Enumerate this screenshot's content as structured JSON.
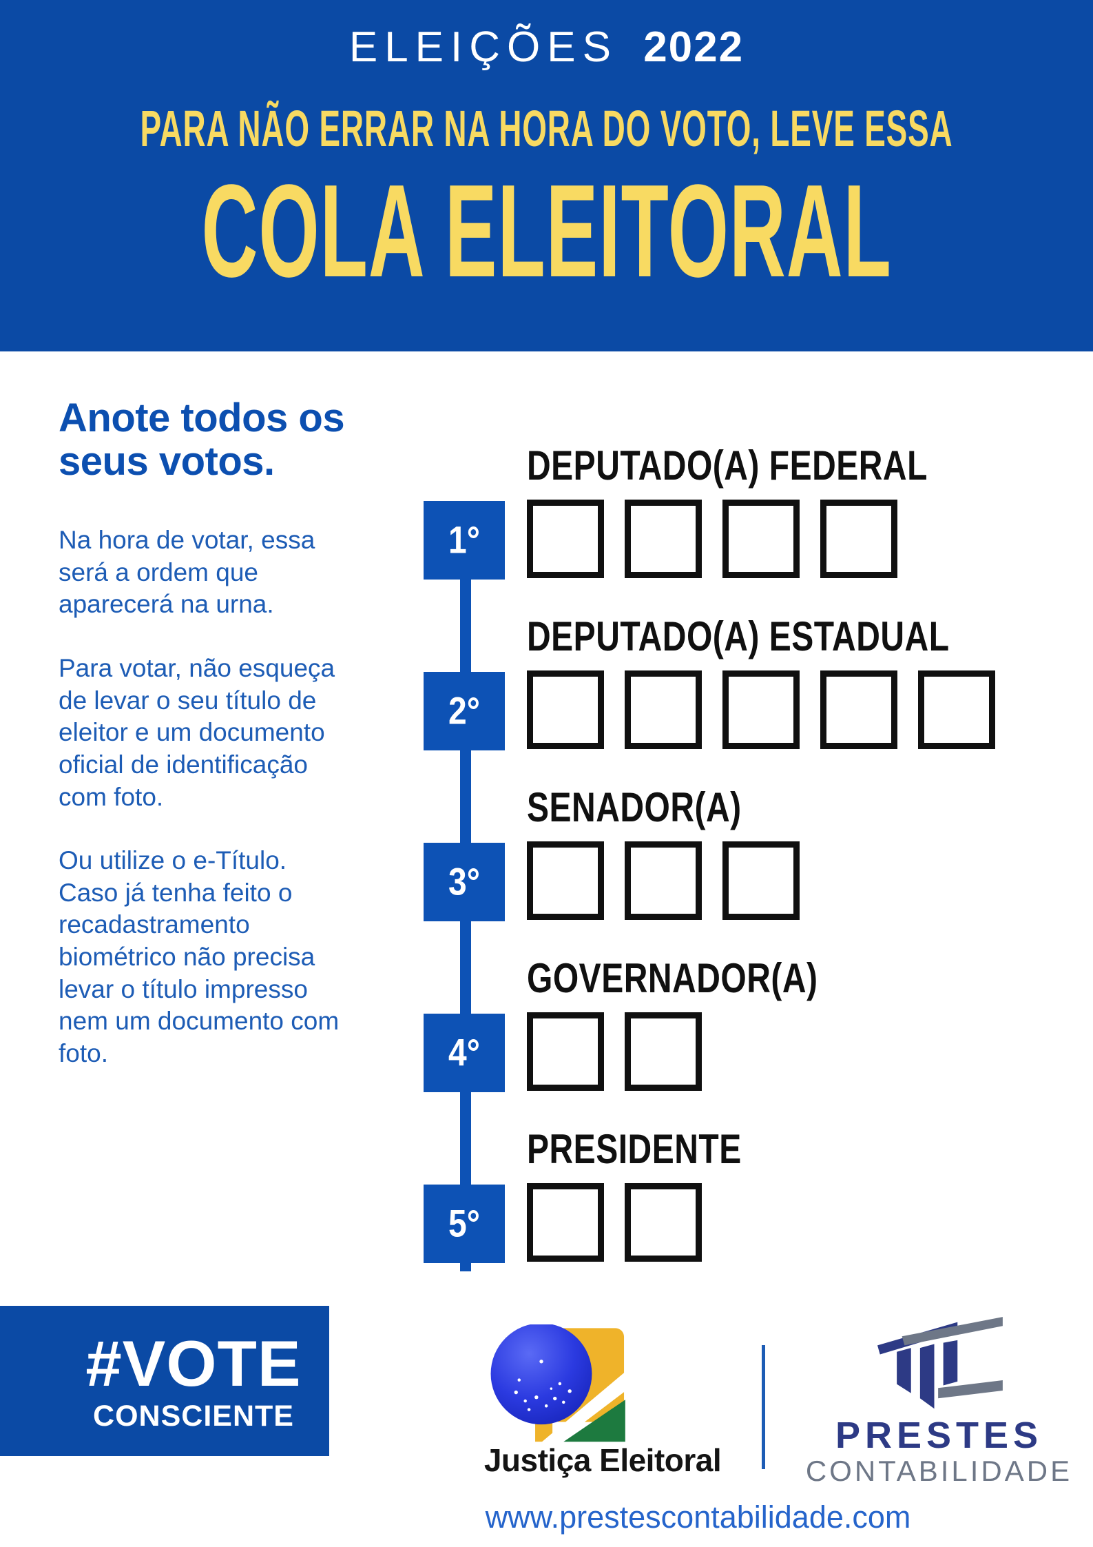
{
  "banner": {
    "eyebrow_light": "ELEIÇÕES",
    "eyebrow_bold": "2022",
    "subtitle": "PARA NÃO ERRAR NA HORA DO VOTO, LEVE ESSA",
    "title": "COLA ELEITORAL"
  },
  "intro": {
    "heading": "Anote todos os seus votos.",
    "paragraphs": [
      "Na hora de votar, essa será a ordem que aparecerá na urna.",
      "Para votar, não esqueça de levar o seu título de eleitor e um documento oficial de identificação com foto.",
      "Ou utilize o e-Título. Caso já tenha feito o recadastramento biométrico não precisa levar o título impresso nem um documento com foto."
    ]
  },
  "timeline": {
    "steps": [
      {
        "order": "1°",
        "office": "DEPUTADO(A) FEDERAL",
        "digits": 4
      },
      {
        "order": "2°",
        "office": "DEPUTADO(A) ESTADUAL",
        "digits": 5
      },
      {
        "order": "3°",
        "office": "SENADOR(A)",
        "digits": 3
      },
      {
        "order": "4°",
        "office": "GOVERNADOR(A)",
        "digits": 2
      },
      {
        "order": "5°",
        "office": "PRESIDENTE",
        "digits": 2
      }
    ]
  },
  "footer": {
    "hashtag_line1": "#VOTE",
    "hashtag_line2": "CONSCIENTE",
    "justice_label": "Justiça Eleitoral",
    "prestes_name": "PRESTES",
    "prestes_sub": "CONTABILIDADE",
    "website": "www.prestescontabilidade.com"
  },
  "colors": {
    "banner-blue": "#0b4aa5",
    "accent-blue": "#0d52b5",
    "heading-blue": "#0c4fb0",
    "text-blue": "#1d5cb5",
    "yellow": "#f8da62",
    "ink": "#101010",
    "link-blue": "#2564cb",
    "navy": "#2d3a85",
    "gray": "#6e7787",
    "logo-yellow": "#efb32a",
    "logo-green": "#1d7a3f",
    "globe-blue": "#2b3ae0"
  }
}
